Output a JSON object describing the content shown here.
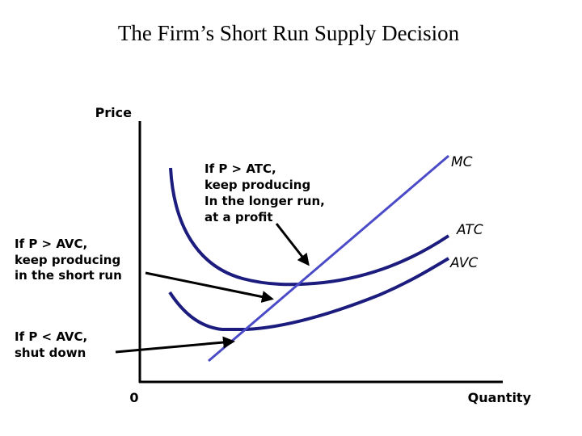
{
  "title": "The Firm’s Short Run Supply Decision",
  "axes": {
    "y_label": "Price",
    "x_label": "Quantity",
    "origin": "0"
  },
  "curves": {
    "mc": "MC",
    "atc": "ATC",
    "avc": "AVC"
  },
  "annotations": [
    {
      "lines": [
        "If P > ATC,",
        "keep producing",
        "In the longer run,",
        "at a profit"
      ]
    },
    {
      "lines": [
        "If P > AVC,",
        "keep producing",
        "in the short run"
      ]
    },
    {
      "lines": [
        "If P < AVC,",
        "shut down"
      ]
    }
  ]
}
